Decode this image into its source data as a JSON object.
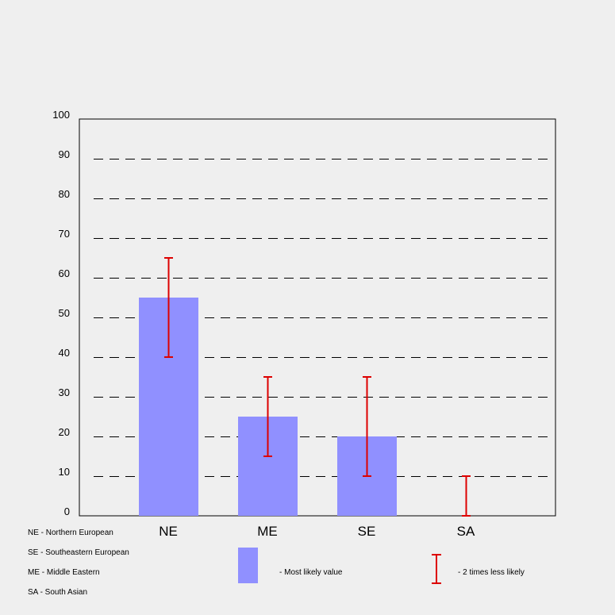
{
  "chart_data": {
    "type": "bar",
    "title": "",
    "xlabel": "",
    "ylabel": "",
    "ylim": [
      0,
      100
    ],
    "yticks": [
      0,
      10,
      20,
      30,
      40,
      50,
      60,
      70,
      80,
      90,
      100
    ],
    "grid": true,
    "categories": [
      "NE",
      "ME",
      "SE",
      "SA"
    ],
    "values": [
      55,
      25,
      20,
      0
    ],
    "error_ranges": [
      [
        40,
        65
      ],
      [
        15,
        35
      ],
      [
        10,
        35
      ],
      [
        0,
        10
      ]
    ],
    "bar_color": "#9090ff",
    "error_color": "#dd0000"
  },
  "legend": {
    "abbreviations": [
      "NE - Northern European",
      "SE - Southeastern European",
      "ME - Middle Eastern",
      "SA - South Asian"
    ],
    "bar_label": "- Most likely value",
    "error_label": "- 2 times less likely"
  }
}
